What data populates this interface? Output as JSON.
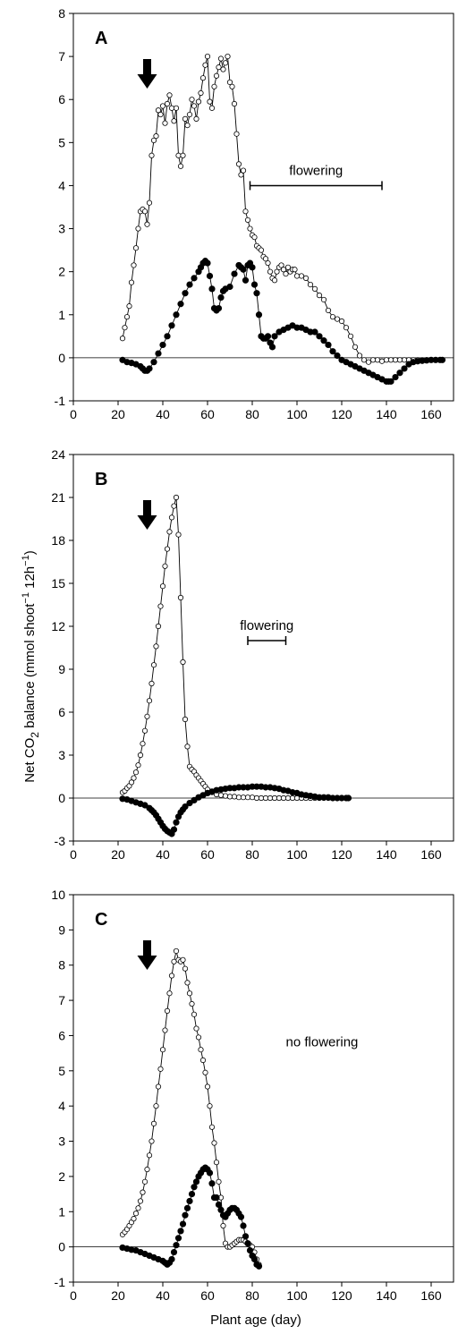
{
  "chart_data": [
    {
      "type": "line",
      "panel": "A",
      "xlim": [
        0,
        170
      ],
      "xticks": [
        0,
        20,
        40,
        60,
        80,
        100,
        120,
        140,
        160
      ],
      "ylim": [
        -1,
        8
      ],
      "yticks": [
        -1,
        0,
        1,
        2,
        3,
        4,
        5,
        6,
        7,
        8
      ],
      "arrow_x": 33,
      "annotation": {
        "text": "flowering",
        "x_start": 79,
        "x_end": 138,
        "y": 4
      },
      "series": [
        {
          "marker": "open",
          "x": [
            22,
            23,
            24,
            25,
            26,
            27,
            28,
            29,
            30,
            31,
            32,
            33,
            34,
            35,
            36,
            37,
            38,
            39,
            40,
            41,
            42,
            43,
            44,
            45,
            46,
            47,
            48,
            49,
            50,
            51,
            52,
            53,
            54,
            55,
            56,
            57,
            58,
            59,
            60,
            61,
            62,
            63,
            64,
            65,
            66,
            67,
            68,
            69,
            70,
            71,
            72,
            73,
            74,
            75,
            76,
            77,
            78,
            79,
            80,
            81,
            82,
            83,
            84,
            85,
            86,
            87,
            88,
            89,
            90,
            91,
            92,
            93,
            94,
            95,
            96,
            97,
            98,
            99,
            100,
            102,
            104,
            106,
            108,
            110,
            112,
            114,
            116,
            118,
            120,
            122,
            124,
            126,
            128,
            130,
            132,
            134,
            136,
            138,
            140,
            142,
            144,
            146,
            148,
            150,
            152,
            154,
            156,
            158,
            160,
            162,
            164,
            165
          ],
          "y": [
            0.45,
            0.7,
            0.95,
            1.2,
            1.75,
            2.15,
            2.55,
            3.0,
            3.4,
            3.45,
            3.4,
            3.1,
            3.6,
            4.7,
            5.05,
            5.15,
            5.75,
            5.65,
            5.85,
            5.45,
            5.9,
            6.1,
            5.8,
            5.5,
            5.8,
            4.7,
            4.45,
            4.7,
            5.55,
            5.4,
            5.65,
            6.0,
            5.85,
            5.55,
            5.95,
            6.15,
            6.5,
            6.8,
            7.0,
            5.95,
            5.8,
            6.3,
            6.55,
            6.75,
            6.95,
            6.7,
            6.85,
            7.0,
            6.4,
            6.3,
            5.9,
            5.2,
            4.5,
            4.25,
            4.35,
            3.4,
            3.2,
            3.0,
            2.85,
            2.8,
            2.6,
            2.55,
            2.5,
            2.35,
            2.3,
            2.2,
            2.0,
            1.85,
            1.8,
            2.0,
            2.1,
            2.15,
            2.05,
            1.95,
            2.1,
            2.0,
            2.05,
            2.05,
            1.9,
            1.9,
            1.85,
            1.7,
            1.6,
            1.45,
            1.35,
            1.1,
            0.95,
            0.9,
            0.85,
            0.7,
            0.5,
            0.25,
            0.05,
            -0.05,
            -0.1,
            -0.05,
            -0.05,
            -0.08,
            -0.05,
            -0.05,
            -0.05,
            -0.05,
            -0.05,
            -0.05,
            -0.05,
            -0.05,
            -0.05,
            -0.05,
            -0.05,
            -0.05,
            -0.05,
            -0.05
          ]
        },
        {
          "marker": "filled",
          "x": [
            22,
            24,
            26,
            28,
            30,
            31,
            32,
            33,
            34,
            36,
            38,
            40,
            42,
            44,
            46,
            48,
            50,
            52,
            54,
            56,
            57,
            58,
            59,
            60,
            61,
            62,
            63,
            64,
            65,
            66,
            67,
            68,
            70,
            72,
            74,
            75,
            76,
            77,
            78,
            79,
            80,
            81,
            82,
            83,
            84,
            85,
            86,
            87,
            88,
            89,
            90,
            92,
            94,
            96,
            98,
            100,
            102,
            104,
            106,
            108,
            110,
            112,
            114,
            116,
            118,
            120,
            122,
            124,
            126,
            128,
            130,
            132,
            134,
            136,
            138,
            140,
            141,
            142,
            144,
            146,
            148,
            150,
            152,
            154,
            156,
            158,
            160,
            162,
            164,
            165
          ],
          "y": [
            -0.05,
            -0.1,
            -0.12,
            -0.15,
            -0.2,
            -0.25,
            -0.3,
            -0.3,
            -0.25,
            -0.1,
            0.1,
            0.3,
            0.5,
            0.75,
            1.0,
            1.25,
            1.5,
            1.7,
            1.85,
            2.0,
            2.1,
            2.2,
            2.25,
            2.2,
            1.9,
            1.6,
            1.15,
            1.1,
            1.15,
            1.4,
            1.55,
            1.6,
            1.65,
            1.95,
            2.15,
            2.1,
            2.05,
            1.8,
            2.15,
            2.2,
            2.1,
            1.7,
            1.5,
            1.0,
            0.5,
            0.45,
            0.45,
            0.5,
            0.35,
            0.25,
            0.5,
            0.6,
            0.65,
            0.7,
            0.75,
            0.7,
            0.7,
            0.65,
            0.6,
            0.6,
            0.5,
            0.4,
            0.3,
            0.15,
            0.05,
            -0.05,
            -0.1,
            -0.15,
            -0.2,
            -0.25,
            -0.3,
            -0.35,
            -0.4,
            -0.45,
            -0.5,
            -0.55,
            -0.55,
            -0.55,
            -0.45,
            -0.35,
            -0.25,
            -0.15,
            -0.1,
            -0.08,
            -0.07,
            -0.06,
            -0.05,
            -0.05,
            -0.05,
            -0.05
          ]
        }
      ]
    },
    {
      "type": "line",
      "panel": "B",
      "xlim": [
        0,
        170
      ],
      "xticks": [
        0,
        20,
        40,
        60,
        80,
        100,
        120,
        140,
        160
      ],
      "ylim": [
        -3,
        24
      ],
      "yticks": [
        -3,
        0,
        3,
        6,
        9,
        12,
        15,
        18,
        21,
        24
      ],
      "arrow_x": 33,
      "annotation": {
        "text": "flowering",
        "x_start": 78,
        "x_end": 95,
        "y": 11
      },
      "series": [
        {
          "marker": "open",
          "x": [
            22,
            23,
            24,
            25,
            26,
            27,
            28,
            29,
            30,
            31,
            32,
            33,
            34,
            35,
            36,
            37,
            38,
            39,
            40,
            41,
            42,
            43,
            44,
            45,
            46,
            47,
            48,
            49,
            50,
            51,
            52,
            53,
            54,
            55,
            56,
            57,
            58,
            59,
            60,
            62,
            64,
            66,
            68,
            70,
            72,
            74,
            76,
            78,
            80,
            82,
            84,
            86,
            88,
            90,
            92,
            94,
            96,
            98,
            100,
            102,
            104,
            106,
            108,
            110,
            112,
            114,
            116,
            118,
            120,
            122,
            123
          ],
          "y": [
            0.4,
            0.5,
            0.7,
            0.85,
            1.1,
            1.4,
            1.8,
            2.3,
            3.0,
            3.8,
            4.7,
            5.7,
            6.8,
            8.0,
            9.3,
            10.6,
            12.0,
            13.4,
            14.8,
            16.2,
            17.4,
            18.6,
            19.6,
            20.4,
            21.0,
            18.4,
            14.0,
            9.5,
            5.5,
            3.6,
            2.2,
            2.0,
            1.85,
            1.6,
            1.4,
            1.2,
            1.0,
            0.8,
            0.6,
            0.4,
            0.25,
            0.2,
            0.15,
            0.1,
            0.1,
            0.05,
            0.05,
            0.05,
            0.05,
            0.0,
            0.0,
            0.0,
            0.0,
            0.0,
            0.0,
            0.0,
            0.0,
            0.0,
            0.0,
            0.0,
            0.0,
            0.0,
            0.0,
            0.0,
            0.0,
            0.0,
            0.0,
            0.0,
            0.0,
            0.0,
            0.0
          ]
        },
        {
          "marker": "filled",
          "x": [
            22,
            24,
            26,
            28,
            30,
            32,
            34,
            35,
            36,
            37,
            38,
            39,
            40,
            41,
            42,
            43,
            44,
            45,
            46,
            47,
            48,
            49,
            50,
            52,
            54,
            56,
            58,
            60,
            62,
            64,
            66,
            68,
            70,
            72,
            74,
            76,
            78,
            80,
            82,
            84,
            86,
            88,
            90,
            92,
            94,
            96,
            98,
            100,
            102,
            104,
            106,
            108,
            110,
            112,
            114,
            116,
            118,
            120,
            122,
            123
          ],
          "y": [
            -0.05,
            -0.1,
            -0.2,
            -0.3,
            -0.4,
            -0.5,
            -0.7,
            -0.85,
            -1.0,
            -1.2,
            -1.45,
            -1.7,
            -1.95,
            -2.15,
            -2.3,
            -2.4,
            -2.5,
            -2.2,
            -1.7,
            -1.3,
            -1.0,
            -0.8,
            -0.6,
            -0.35,
            -0.15,
            0.05,
            0.2,
            0.35,
            0.45,
            0.55,
            0.6,
            0.65,
            0.7,
            0.7,
            0.75,
            0.75,
            0.75,
            0.8,
            0.8,
            0.8,
            0.75,
            0.75,
            0.7,
            0.65,
            0.55,
            0.5,
            0.4,
            0.35,
            0.25,
            0.2,
            0.15,
            0.1,
            0.05,
            0.05,
            0.05,
            0.0,
            0.0,
            0.0,
            0.0,
            0.0
          ]
        }
      ]
    },
    {
      "type": "line",
      "panel": "C",
      "xlim": [
        0,
        170
      ],
      "xticks": [
        0,
        20,
        40,
        60,
        80,
        100,
        120,
        140,
        160
      ],
      "ylim": [
        -1,
        10
      ],
      "yticks": [
        -1,
        0,
        1,
        2,
        3,
        4,
        5,
        6,
        7,
        8,
        9,
        10
      ],
      "arrow_x": 33,
      "annotation": {
        "text": "no flowering",
        "x": 95,
        "y": 5.7
      },
      "xlabel": "Plant age (day)",
      "series": [
        {
          "marker": "open",
          "x": [
            22,
            23,
            24,
            25,
            26,
            27,
            28,
            29,
            30,
            31,
            32,
            33,
            34,
            35,
            36,
            37,
            38,
            39,
            40,
            41,
            42,
            43,
            44,
            45,
            46,
            47,
            48,
            49,
            50,
            51,
            52,
            53,
            54,
            55,
            56,
            57,
            58,
            59,
            60,
            61,
            62,
            63,
            64,
            65,
            66,
            67,
            68,
            69,
            70,
            71,
            72,
            73,
            74,
            75,
            76,
            77,
            78,
            79,
            80,
            81,
            82,
            83
          ],
          "y": [
            0.35,
            0.42,
            0.5,
            0.6,
            0.7,
            0.8,
            0.95,
            1.1,
            1.3,
            1.55,
            1.85,
            2.2,
            2.6,
            3.0,
            3.5,
            4.0,
            4.55,
            5.05,
            5.6,
            6.15,
            6.7,
            7.2,
            7.7,
            8.1,
            8.4,
            8.15,
            8.1,
            8.15,
            7.9,
            7.5,
            7.2,
            6.9,
            6.6,
            6.2,
            5.95,
            5.6,
            5.3,
            4.95,
            4.55,
            4.0,
            3.4,
            2.95,
            2.4,
            1.85,
            1.4,
            0.6,
            0.1,
            0.0,
            0.0,
            0.05,
            0.1,
            0.15,
            0.2,
            0.2,
            0.2,
            0.15,
            0.1,
            0.05,
            0.0,
            -0.15,
            -0.35,
            -0.5
          ]
        },
        {
          "marker": "filled",
          "x": [
            22,
            24,
            26,
            28,
            30,
            32,
            34,
            36,
            38,
            40,
            41,
            42,
            43,
            44,
            45,
            46,
            47,
            48,
            49,
            50,
            51,
            52,
            53,
            54,
            55,
            56,
            57,
            58,
            59,
            60,
            61,
            62,
            63,
            64,
            65,
            66,
            67,
            68,
            69,
            70,
            71,
            72,
            73,
            74,
            75,
            76,
            77,
            78,
            79,
            80,
            81,
            82,
            83
          ],
          "y": [
            -0.02,
            -0.05,
            -0.08,
            -0.1,
            -0.15,
            -0.2,
            -0.25,
            -0.3,
            -0.35,
            -0.4,
            -0.45,
            -0.5,
            -0.45,
            -0.35,
            -0.15,
            0.05,
            0.25,
            0.45,
            0.65,
            0.9,
            1.1,
            1.3,
            1.5,
            1.7,
            1.85,
            2.0,
            2.1,
            2.2,
            2.25,
            2.2,
            2.1,
            1.8,
            1.4,
            1.4,
            1.2,
            1.05,
            0.9,
            0.85,
            0.95,
            1.05,
            1.1,
            1.1,
            1.05,
            0.95,
            0.85,
            0.6,
            0.3,
            0.1,
            -0.1,
            -0.25,
            -0.35,
            -0.5,
            -0.55
          ]
        }
      ]
    }
  ],
  "shared": {
    "ylabel_main": "Net CO",
    "ylabel_sub": "2",
    "ylabel_rest1": " balance (mmol shoot",
    "ylabel_sup1": "−1",
    "ylabel_rest2": " 12h",
    "ylabel_sup2": "−1",
    "ylabel_close": ")"
  }
}
